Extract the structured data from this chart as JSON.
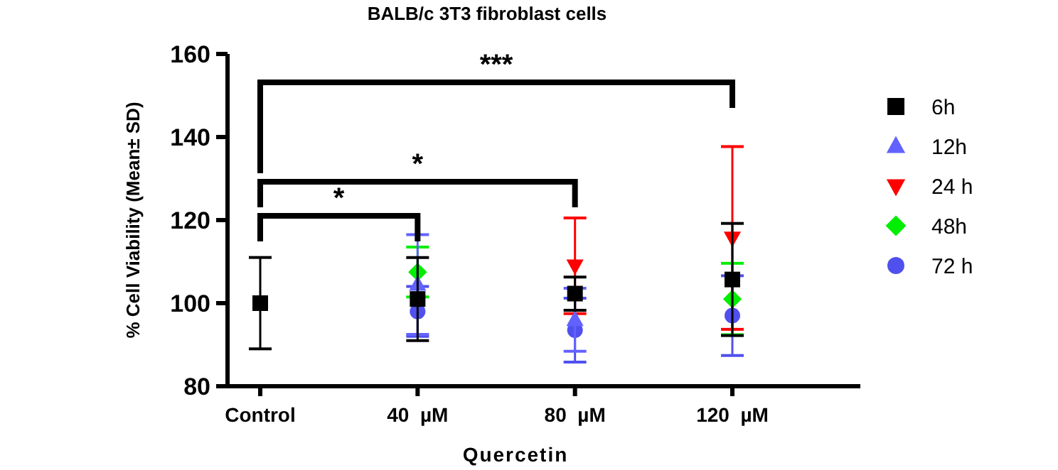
{
  "chart_data": {
    "type": "scatter",
    "title": "BALB/c 3T3 fibroblast cells",
    "xlabel": "Quercetin",
    "ylabel": "% Cell Viability (Mean± SD)",
    "categories": [
      "Control",
      "40  µM",
      "80  µM",
      "120  µM"
    ],
    "ylim": [
      80,
      160
    ],
    "yticks": [
      80,
      100,
      120,
      140,
      160
    ],
    "legend": "right",
    "grid": false,
    "annotations": [
      "*",
      "*",
      "***"
    ],
    "series": [
      {
        "name": "6h",
        "color": "#000000",
        "marker": "square",
        "values": [
          100,
          101,
          102.3,
          105.7
        ],
        "errors": [
          11,
          10,
          4,
          13.5
        ]
      },
      {
        "name": "12h",
        "color": "#6262ff",
        "marker": "triangle",
        "values": [
          null,
          104.5,
          96,
          null
        ],
        "errors": [
          null,
          12,
          7.6,
          null
        ]
      },
      {
        "name": "24 h",
        "color": "#ff0000",
        "marker": "triangle-down",
        "values": [
          null,
          null,
          109,
          115.7
        ],
        "errors": [
          null,
          null,
          11.5,
          22
        ]
      },
      {
        "name": "48h",
        "color": "#00ee00",
        "marker": "diamond",
        "values": [
          null,
          107.5,
          null,
          101
        ],
        "errors": [
          null,
          6,
          null,
          8.6
        ]
      },
      {
        "name": "72 h",
        "color": "#5050ee",
        "marker": "circle",
        "values": [
          null,
          98,
          93.5,
          97
        ],
        "errors": [
          null,
          6,
          7.7,
          9.6
        ]
      }
    ]
  }
}
